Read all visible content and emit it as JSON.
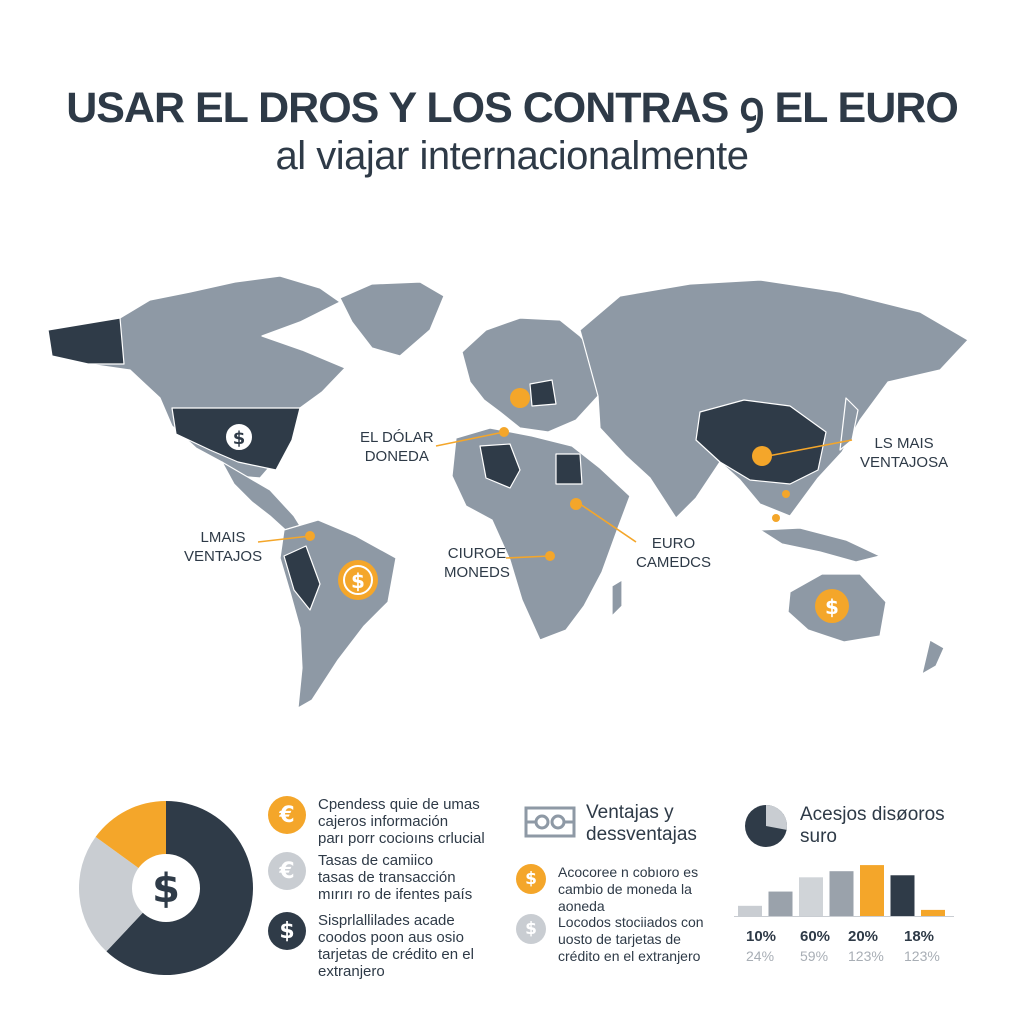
{
  "title": {
    "line1": "USAR EL DROS Y LOS CONTRAS ꝯ EL EURO",
    "line2": "al viajar internacionalmente"
  },
  "map": {
    "labels": {
      "el_dolar": [
        "EL DÓLAR",
        "DONEDA"
      ],
      "mas_ventajosa": [
        "LS MAIS",
        "VENTAJOSA"
      ],
      "mas_ventajos": [
        "LMAIS",
        "VENTAJOS"
      ],
      "curoe": [
        "CIUROE",
        "MONEDS"
      ],
      "euro": [
        "EURO",
        "CAMEDCS"
      ]
    },
    "symbol_dollar": "$",
    "colors": {
      "land": "#8e99a5",
      "dark": "#2f3b48",
      "accent": "#f4a62a",
      "coast": "#ffffff"
    }
  },
  "donut": {
    "center_symbol": "$",
    "segments": [
      {
        "color": "#2f3b48",
        "value": 0.62
      },
      {
        "color": "#c9cdd2",
        "value": 0.23
      },
      {
        "color": "#f4a62a",
        "value": 0.15
      }
    ]
  },
  "list_left": [
    {
      "icon": "euro-icon",
      "symbol": "€",
      "tone": "o",
      "lines": [
        "Cpendess quie de umas",
        "cajeros información",
        "parı porr cocioıns crlucial"
      ]
    },
    {
      "icon": "euro-icon",
      "symbol": "€",
      "tone": "g",
      "lines": [
        "Tasas de camiico",
        "tasas de transacción",
        "mırırı ro de ifentes país"
      ]
    },
    {
      "icon": "dollar-icon",
      "symbol": "$",
      "tone": "d",
      "lines": [
        "Sisprlallilades acade",
        "coodos poon aus osio",
        "tarjetas de crédito en el",
        "extranjero"
      ]
    }
  ],
  "middle": {
    "header": [
      "Ventajas y",
      "dessventajas"
    ],
    "items": [
      {
        "icon": "dollar-icon",
        "symbol": "$",
        "tone": "o",
        "lines": [
          "Acocoree n cobıoro es",
          "cambio de moneda la",
          "aoneda"
        ]
      },
      {
        "icon": "dollar-icon",
        "symbol": "$",
        "tone": "g",
        "lines": [
          "Locodos stociiados con",
          "uosto de tarjetas de",
          "crédito en el extranjero"
        ]
      }
    ]
  },
  "right": {
    "header": [
      "Acesjos disøoros",
      "suro"
    ],
    "pie": {
      "dark": 0.72,
      "light": 0.28
    },
    "bars": [
      {
        "value": 10,
        "color": "#c9cdd2"
      },
      {
        "value": 24,
        "color": "#9aa2ab"
      },
      {
        "value": 38,
        "color": "#d0d4d8"
      },
      {
        "value": 44,
        "color": "#9aa2ab"
      },
      {
        "value": 50,
        "color": "#f4a62a"
      },
      {
        "value": 40,
        "color": "#2f3b48"
      },
      {
        "value": 6,
        "color": "#f4a62a"
      }
    ],
    "percents_top": [
      "10%",
      "60%",
      "20%",
      "18%"
    ],
    "percents_bottom": [
      "24%",
      "59%",
      "123%",
      "123%"
    ]
  }
}
